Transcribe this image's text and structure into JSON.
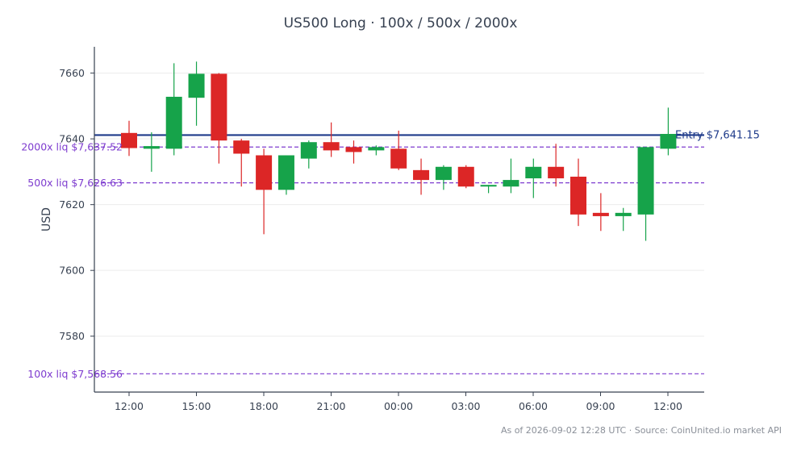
{
  "chart_data": {
    "type": "candlestick",
    "title": "US500 Long · 100x / 500x / 2000x",
    "ylabel": "USD",
    "xlabel": "",
    "ylim": [
      7563,
      7668
    ],
    "x_tick_labels": [
      "12:00",
      "15:00",
      "18:00",
      "21:00",
      "00:00",
      "03:00",
      "06:00",
      "09:00",
      "12:00"
    ],
    "y_ticks": [
      7580,
      7600,
      7620,
      7640,
      7660
    ],
    "grid": true,
    "candle_interval": "1h",
    "candles": [
      {
        "t": "11:00",
        "o": 7641.8,
        "h": 7645.5,
        "l": 7634.8,
        "c": 7637.2
      },
      {
        "t": "12:00",
        "o": 7637.0,
        "h": 7642.0,
        "l": 7630.0,
        "c": 7637.8
      },
      {
        "t": "13:00",
        "o": 7637.0,
        "h": 7663.0,
        "l": 7635.0,
        "c": 7652.8
      },
      {
        "t": "14:00",
        "o": 7652.5,
        "h": 7663.5,
        "l": 7644.0,
        "c": 7659.8
      },
      {
        "t": "15:00",
        "o": 7659.8,
        "h": 7660.0,
        "l": 7632.5,
        "c": 7639.5
      },
      {
        "t": "16:00",
        "o": 7639.5,
        "h": 7640.0,
        "l": 7625.5,
        "c": 7635.5
      },
      {
        "t": "17:00",
        "o": 7635.0,
        "h": 7637.0,
        "l": 7611.0,
        "c": 7624.5
      },
      {
        "t": "18:00",
        "o": 7624.5,
        "h": 7635.0,
        "l": 7623.0,
        "c": 7635.0
      },
      {
        "t": "19:00",
        "o": 7634.0,
        "h": 7639.5,
        "l": 7631.0,
        "c": 7639.0
      },
      {
        "t": "20:00",
        "o": 7639.0,
        "h": 7645.0,
        "l": 7634.5,
        "c": 7636.5
      },
      {
        "t": "21:00",
        "o": 7637.5,
        "h": 7639.5,
        "l": 7632.5,
        "c": 7636.0
      },
      {
        "t": "22:00",
        "o": 7636.5,
        "h": 7638.0,
        "l": 7635.0,
        "c": 7637.5
      },
      {
        "t": "23:00",
        "o": 7637.0,
        "h": 7642.5,
        "l": 7630.5,
        "c": 7631.0
      },
      {
        "t": "00:00",
        "o": 7630.5,
        "h": 7634.0,
        "l": 7623.0,
        "c": 7627.5
      },
      {
        "t": "01:00",
        "o": 7627.5,
        "h": 7632.0,
        "l": 7624.5,
        "c": 7631.5
      },
      {
        "t": "02:00",
        "o": 7631.5,
        "h": 7632.0,
        "l": 7625.0,
        "c": 7625.5
      },
      {
        "t": "03:00",
        "o": 7625.5,
        "h": 7626.0,
        "l": 7623.5,
        "c": 7626.0
      },
      {
        "t": "04:00",
        "o": 7625.5,
        "h": 7634.0,
        "l": 7623.5,
        "c": 7627.5
      },
      {
        "t": "05:00",
        "o": 7628.0,
        "h": 7634.0,
        "l": 7622.0,
        "c": 7631.5
      },
      {
        "t": "06:00",
        "o": 7631.5,
        "h": 7638.5,
        "l": 7625.5,
        "c": 7628.0
      },
      {
        "t": "07:00",
        "o": 7628.5,
        "h": 7634.0,
        "l": 7613.5,
        "c": 7617.0
      },
      {
        "t": "08:00",
        "o": 7617.5,
        "h": 7623.5,
        "l": 7612.0,
        "c": 7616.5
      },
      {
        "t": "09:00",
        "o": 7616.5,
        "h": 7619.0,
        "l": 7612.0,
        "c": 7617.5
      },
      {
        "t": "10:00",
        "o": 7617.0,
        "h": 7637.5,
        "l": 7609.0,
        "c": 7637.5
      },
      {
        "t": "11:00",
        "o": 7637.0,
        "h": 7649.5,
        "l": 7635.0,
        "c": 7641.5
      }
    ],
    "reference_lines": [
      {
        "label": "Entry $7,641.15",
        "value": 7641.15,
        "style": "solid",
        "color": "#1e3a8a"
      },
      {
        "label": "2000x liq $7,637.52",
        "value": 7637.52,
        "style": "dashed",
        "color": "#7e3ccf"
      },
      {
        "label": "500x liq $7,626.63",
        "value": 7626.63,
        "style": "dashed",
        "color": "#7e3ccf"
      },
      {
        "label": "100x liq $7,568.56",
        "value": 7568.56,
        "style": "dashed",
        "color": "#7e3ccf"
      }
    ],
    "colors": {
      "up": "#16a34a",
      "down": "#dc2626",
      "grid": "#ececec",
      "axis": "#374151"
    }
  },
  "footer": "As of 2026-09-02 12:28 UTC · Source: CoinUnited.io market API"
}
